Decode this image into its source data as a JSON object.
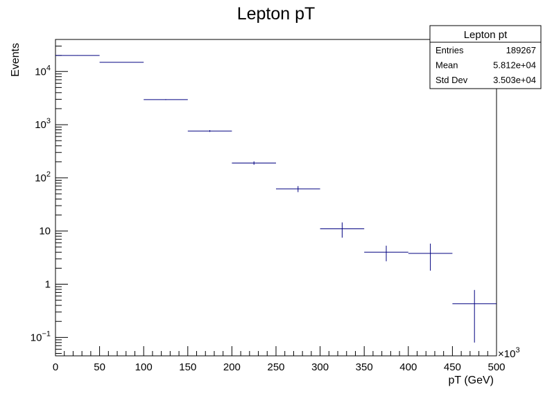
{
  "chart_data": {
    "type": "histogram",
    "title": "Lepton pT",
    "xlabel": "pT (GeV)",
    "ylabel": "Events",
    "x_multiplier": "×10",
    "x_multiplier_exp": "3",
    "xlim": [
      0,
      500
    ],
    "ylim": [
      0.045,
      40000
    ],
    "y_scale": "log",
    "x_tick_labels": [
      "0",
      "50",
      "100",
      "150",
      "200",
      "250",
      "300",
      "350",
      "400",
      "450",
      "500"
    ],
    "y_ticks": [
      {
        "value": 0.1,
        "base": "10",
        "exp": "−1"
      },
      {
        "value": 1,
        "base": "1",
        "exp": ""
      },
      {
        "value": 10,
        "base": "10",
        "exp": ""
      },
      {
        "value": 100,
        "base": "10",
        "exp": "2"
      },
      {
        "value": 1000,
        "base": "10",
        "exp": "3"
      },
      {
        "value": 10000,
        "base": "10",
        "exp": "4"
      }
    ],
    "line_color": "#000080",
    "bins": [
      {
        "x_low": 0,
        "x_high": 50,
        "y": 20000,
        "err": 140
      },
      {
        "x_low": 50,
        "x_high": 100,
        "y": 14900,
        "err": 122
      },
      {
        "x_low": 100,
        "x_high": 150,
        "y": 2960,
        "err": 54
      },
      {
        "x_low": 150,
        "x_high": 200,
        "y": 760,
        "err": 28
      },
      {
        "x_low": 200,
        "x_high": 250,
        "y": 190,
        "err": 14
      },
      {
        "x_low": 250,
        "x_high": 300,
        "y": 62,
        "err": 8
      },
      {
        "x_low": 300,
        "x_high": 350,
        "y": 11,
        "err": 3.5
      },
      {
        "x_low": 350,
        "x_high": 400,
        "y": 4,
        "err": 1.3
      },
      {
        "x_low": 400,
        "x_high": 450,
        "y": 3.8,
        "err": 2
      },
      {
        "x_low": 450,
        "x_high": 500,
        "y": 0.43,
        "err": 0.35
      }
    ],
    "stats": {
      "title": "Lepton pt",
      "rows": [
        {
          "label": "Entries",
          "value": "189267"
        },
        {
          "label": "Mean",
          "value": "5.812e+04"
        },
        {
          "label": "Std Dev",
          "value": "3.503e+04"
        }
      ]
    }
  }
}
